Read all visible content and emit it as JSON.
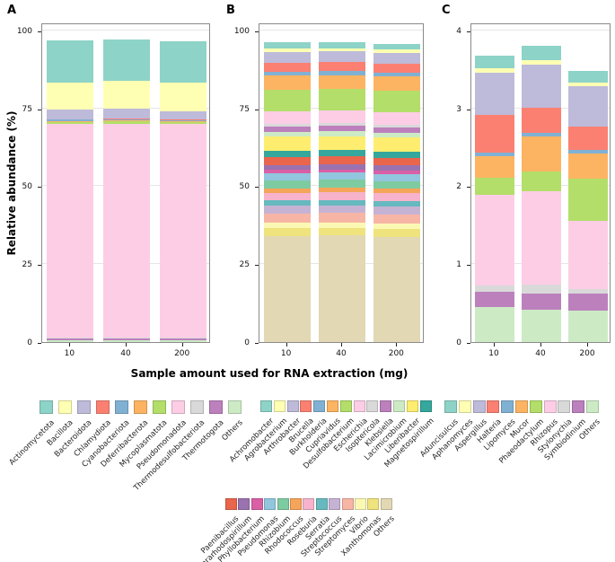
{
  "axes": {
    "y_label": "Relative abundance (%)",
    "x_label": "Sample amount used for RNA extraction (mg)"
  },
  "figure": {
    "background": "#ffffff"
  },
  "chart_data": [
    {
      "type": "bar",
      "stacked": true,
      "panel_label": "A",
      "title": "",
      "categories": [
        "10",
        "40",
        "200"
      ],
      "ylim": [
        0,
        100
      ],
      "yticks": [
        0,
        25,
        50,
        75,
        100
      ],
      "grid": true,
      "legend_position": "bottom",
      "series": [
        {
          "name": "Actinomycetota",
          "color": "#8DD3C7",
          "values": [
            13.5,
            13.2,
            13.4
          ]
        },
        {
          "name": "Bacillota",
          "color": "#FFFFB3",
          "values": [
            8.7,
            8.9,
            9.2
          ]
        },
        {
          "name": "Bacteroidota",
          "color": "#BEBADA",
          "values": [
            3.0,
            3.3,
            2.6
          ]
        },
        {
          "name": "Chlamydiota",
          "color": "#FB8072",
          "values": [
            0.2,
            0.2,
            0.2
          ]
        },
        {
          "name": "Cyanobacteriota",
          "color": "#80B1D3",
          "values": [
            0.4,
            0.4,
            0.4
          ]
        },
        {
          "name": "Deferribacterota",
          "color": "#FDB462",
          "values": [
            0.3,
            0.3,
            0.3
          ]
        },
        {
          "name": "Mycoplasmatota",
          "color": "#B3DE69",
          "values": [
            0.6,
            0.6,
            0.6
          ]
        },
        {
          "name": "Pseudomonadota",
          "color": "#FCCDE5",
          "values": [
            68.5,
            68.6,
            68.4
          ]
        },
        {
          "name": "Thermodesulfobacteriota",
          "color": "#D9D9D9",
          "values": [
            0.3,
            0.3,
            0.3
          ]
        },
        {
          "name": "Thermotogota",
          "color": "#BC80BD",
          "values": [
            0.7,
            0.7,
            0.7
          ]
        },
        {
          "name": "Others",
          "color": "#CCEBC5",
          "values": [
            0.5,
            0.5,
            0.5
          ]
        }
      ]
    },
    {
      "type": "bar",
      "stacked": true,
      "panel_label": "B",
      "title": "",
      "categories": [
        "10",
        "40",
        "200"
      ],
      "ylim": [
        0,
        100
      ],
      "yticks": [
        0,
        25,
        50,
        75,
        100
      ],
      "grid": true,
      "legend_position": "bottom",
      "series": [
        {
          "name": "Achromobacter",
          "color": "#8DD3C7",
          "values": [
            2.0,
            2.0,
            2.0
          ]
        },
        {
          "name": "Agrobacterium",
          "color": "#FFFFB3",
          "values": [
            1.0,
            1.0,
            1.0
          ]
        },
        {
          "name": "Arthrobacter",
          "color": "#BEBADA",
          "values": [
            3.5,
            3.4,
            3.5
          ]
        },
        {
          "name": "Brucella",
          "color": "#FB8072",
          "values": [
            3.0,
            3.0,
            2.9
          ]
        },
        {
          "name": "Burkholderia",
          "color": "#80B1D3",
          "values": [
            1.2,
            1.2,
            1.2
          ]
        },
        {
          "name": "Cupriavidus",
          "color": "#FDB462",
          "values": [
            4.5,
            4.4,
            4.5
          ]
        },
        {
          "name": "Desulfobacterium",
          "color": "#B3DE69",
          "values": [
            7.0,
            7.1,
            7.0
          ]
        },
        {
          "name": "Escherichia",
          "color": "#FCCDE5",
          "values": [
            4.0,
            4.0,
            4.0
          ]
        },
        {
          "name": "Isoptericola",
          "color": "#D9D9D9",
          "values": [
            0.8,
            0.8,
            0.8
          ]
        },
        {
          "name": "Klebsiella",
          "color": "#BC80BD",
          "values": [
            1.8,
            1.8,
            1.8
          ]
        },
        {
          "name": "Lacimicrobium",
          "color": "#CCEBC5",
          "values": [
            1.5,
            1.5,
            1.5
          ]
        },
        {
          "name": "Liberibacter",
          "color": "#FFED6F",
          "values": [
            4.5,
            4.5,
            4.4
          ]
        },
        {
          "name": "Magnetospirillum",
          "color": "#35A79C",
          "values": [
            2.0,
            2.0,
            2.0
          ]
        },
        {
          "name": "Paenibacillus",
          "color": "#E9654B",
          "values": [
            2.5,
            2.5,
            2.5
          ]
        },
        {
          "name": "Pararhodospirillum",
          "color": "#9B72B0",
          "values": [
            1.7,
            1.7,
            1.7
          ]
        },
        {
          "name": "Phyllobacterium",
          "color": "#D95FA6",
          "values": [
            1.0,
            1.0,
            1.0
          ]
        },
        {
          "name": "Pseudomonas",
          "color": "#92C5DE",
          "values": [
            2.3,
            2.3,
            2.3
          ]
        },
        {
          "name": "Rhizobium",
          "color": "#7ECBA1",
          "values": [
            2.5,
            2.5,
            2.5
          ]
        },
        {
          "name": "Rhodococcus",
          "color": "#F5A55A",
          "values": [
            1.5,
            1.5,
            1.5
          ]
        },
        {
          "name": "Roseburia",
          "color": "#F6B3CB",
          "values": [
            2.5,
            2.5,
            2.5
          ]
        },
        {
          "name": "Serratia",
          "color": "#66B9BF",
          "values": [
            1.7,
            1.7,
            1.7
          ]
        },
        {
          "name": "Streptococcus",
          "color": "#C6B3D3",
          "values": [
            2.5,
            2.5,
            2.5
          ]
        },
        {
          "name": "Streptomyces",
          "color": "#F7B6A5",
          "values": [
            3.0,
            3.0,
            3.0
          ]
        },
        {
          "name": "Vibrio",
          "color": "#FBF8B4",
          "values": [
            1.7,
            1.7,
            1.7
          ]
        },
        {
          "name": "Xanthomonas",
          "color": "#EFE37E",
          "values": [
            2.5,
            2.5,
            2.5
          ]
        },
        {
          "name": "Others",
          "color": "#E2D8B3",
          "values": [
            34.0,
            34.2,
            33.8
          ]
        }
      ]
    },
    {
      "type": "bar",
      "stacked": true,
      "panel_label": "C",
      "title": "",
      "categories": [
        "10",
        "40",
        "200"
      ],
      "ylim": [
        0,
        4
      ],
      "yticks": [
        0,
        1,
        2,
        3,
        4
      ],
      "grid": true,
      "legend_position": "bottom",
      "series": [
        {
          "name": "Aduncisulcus",
          "color": "#8DD3C7",
          "values": [
            0.17,
            0.18,
            0.15
          ]
        },
        {
          "name": "Aphanomyces",
          "color": "#FFFFB3",
          "values": [
            0.05,
            0.06,
            0.05
          ]
        },
        {
          "name": "Aspergillus",
          "color": "#BEBADA",
          "values": [
            0.55,
            0.55,
            0.52
          ]
        },
        {
          "name": "Halteria",
          "color": "#FB8072",
          "values": [
            0.48,
            0.32,
            0.3
          ]
        },
        {
          "name": "Lipomyces",
          "color": "#80B1D3",
          "values": [
            0.04,
            0.05,
            0.04
          ]
        },
        {
          "name": "Mucor",
          "color": "#FDB462",
          "values": [
            0.28,
            0.45,
            0.32
          ]
        },
        {
          "name": "Phaeodactylum",
          "color": "#B3DE69",
          "values": [
            0.22,
            0.25,
            0.55
          ]
        },
        {
          "name": "Rhizopus",
          "color": "#FCCDE5",
          "values": [
            1.16,
            1.2,
            0.87
          ]
        },
        {
          "name": "Stylonychia",
          "color": "#D9D9D9",
          "values": [
            0.08,
            0.12,
            0.06
          ]
        },
        {
          "name": "Symbiodinium",
          "color": "#BC80BD",
          "values": [
            0.2,
            0.2,
            0.22
          ]
        },
        {
          "name": "Others",
          "color": "#CCEBC5",
          "values": [
            0.45,
            0.42,
            0.4
          ]
        }
      ]
    }
  ]
}
